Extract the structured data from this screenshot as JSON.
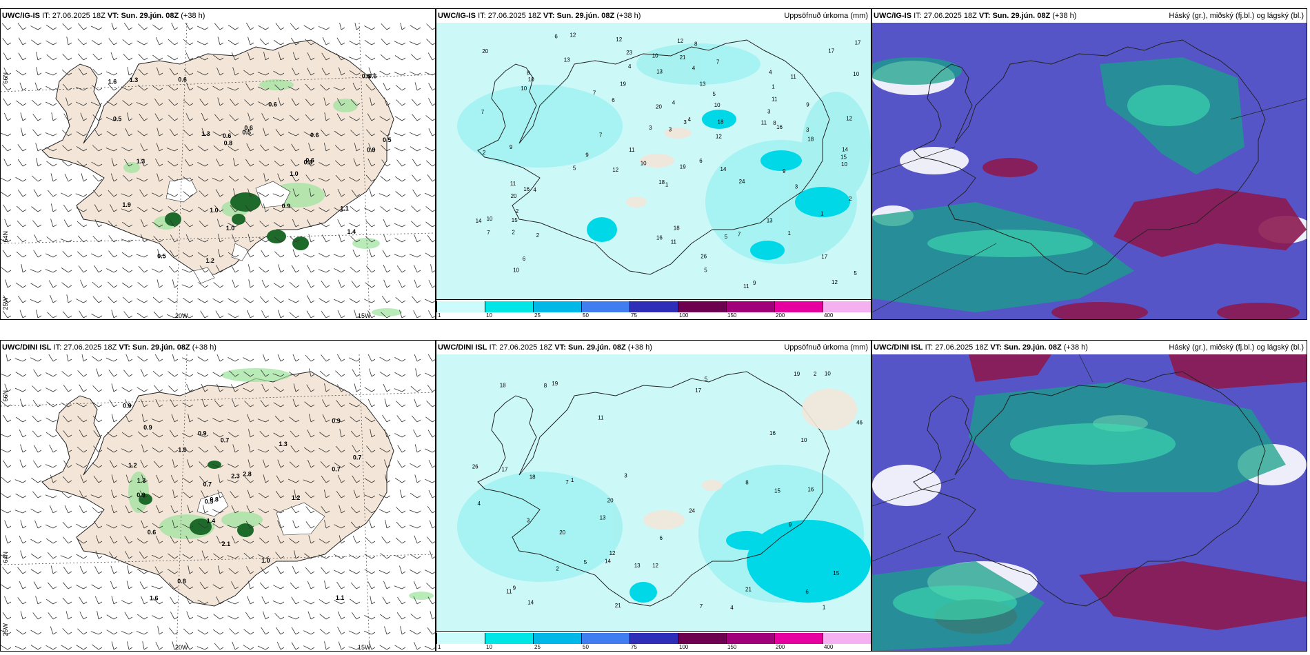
{
  "panels": [
    {
      "model": "UWC/IG-IS",
      "it_label": "IT:",
      "it": "27.06.2025 18Z",
      "vt_label": "VT:",
      "vt": "Sun. 29.jún. 08Z",
      "lead": "(+38 h)",
      "right_title": ""
    },
    {
      "model": "UWC/IG-IS",
      "it_label": "IT:",
      "it": "27.06.2025 18Z",
      "vt_label": "VT:",
      "vt": "Sun. 29.jún. 08Z",
      "lead": "(+38 h)",
      "right_title": "Uppsöfnuð úrkoma (mm)"
    },
    {
      "model": "UWC/IG-IS",
      "it_label": "IT:",
      "it": "27.06.2025 18Z",
      "vt_label": "VT:",
      "vt": "Sun. 29.jún. 08Z",
      "lead": "(+38 h)",
      "right_title": "Háský (gr.), miðský (fj.bl.) og lágský (bl.)"
    },
    {
      "model": "UWC/DINI ISL",
      "it_label": "IT:",
      "it": "27.06.2025 18Z",
      "vt_label": "VT:",
      "vt": "Sun. 29.jún. 08Z",
      "lead": "(+38 h)",
      "right_title": ""
    },
    {
      "model": "UWC/DINI ISL",
      "it_label": "IT:",
      "it": "27.06.2025 18Z",
      "vt_label": "VT:",
      "vt": "Sun. 29.jún. 08Z",
      "lead": "(+38 h)",
      "right_title": "Uppsöfnuð úrkoma (mm)"
    },
    {
      "model": "UWC/DINI ISL",
      "it_label": "IT:",
      "it": "27.06.2025 18Z",
      "vt_label": "VT:",
      "vt": "Sun. 29.jún. 08Z",
      "lead": "(+38 h)",
      "right_title": "Háský (gr.), miðský (fj.bl.) og lágský (bl.)"
    }
  ],
  "axes": {
    "lat_66": "66N",
    "lat_64": "64N",
    "lon_25": "25W",
    "lon_20": "20W",
    "lon_15": "15W"
  },
  "colorbar": {
    "labels": [
      "1",
      "10",
      "25",
      "50",
      "75",
      "100",
      "150",
      "200",
      "400"
    ],
    "colors": [
      "#ccfbfb",
      "#00e5e5",
      "#00b8e8",
      "#3f7df0",
      "#2e2eb8",
      "#6e0050",
      "#a0007a",
      "#e600a0",
      "#f4b0f0"
    ]
  },
  "top_wind_values": [
    "0.5",
    "0.5",
    "0.6",
    "0.6",
    "0.5",
    "0.8",
    "0.6",
    "1.3",
    "0.5",
    "1.9",
    "0.6",
    "0.6",
    "1.1",
    "0.9",
    "1.2",
    "1.0",
    "0.8",
    "1.3",
    "1.6",
    "1.0",
    "1.4",
    "1.3",
    "0.5",
    "0.9",
    "0.6",
    "0.6",
    "1.0"
  ],
  "bottom_wind_values": [
    "0.7",
    "0.9",
    "0.8",
    "1.0",
    "0.8",
    "2.1",
    "0.7",
    "0.9",
    "0.9",
    "1.2",
    "1.3",
    "0.9",
    "0.7",
    "2.3",
    "1.1",
    "0.7",
    "1.6",
    "2.8",
    "1.4",
    "1.2",
    "0.6",
    "0.5",
    "1.0",
    "0.9",
    "1.3"
  ],
  "top_precip_values": [
    "1",
    "1",
    "2",
    "3",
    "4",
    "5",
    "4",
    "6",
    "7",
    "4",
    "5",
    "1",
    "3",
    "6",
    "9",
    "3",
    "4",
    "20",
    "6",
    "11",
    "14",
    "10",
    "7",
    "9",
    "12",
    "13",
    "21",
    "18",
    "8",
    "7",
    "10",
    "11",
    "12",
    "16",
    "8",
    "11",
    "10",
    "20",
    "5",
    "4",
    "7",
    "2",
    "3",
    "16",
    "11",
    "12",
    "17",
    "9",
    "10",
    "13",
    "10",
    "10",
    "9",
    "6",
    "5",
    "8",
    "17",
    "14",
    "13",
    "7",
    "12",
    "20",
    "15",
    "16",
    "18",
    "10",
    "11",
    "12",
    "19",
    "23",
    "24",
    "26",
    "18",
    "15",
    "17",
    "19",
    "18",
    "14",
    "13",
    "12",
    "10",
    "3",
    "5",
    "4",
    "2",
    "2",
    "1",
    "7",
    "11",
    "12",
    "11",
    "2",
    "3",
    "9",
    "10"
  ],
  "bottom_precip_values": [
    "1",
    "2",
    "3",
    "4",
    "5",
    "6",
    "7",
    "8",
    "9",
    "10",
    "11",
    "12",
    "13",
    "14",
    "15",
    "16",
    "17",
    "18",
    "19",
    "20",
    "21",
    "24",
    "26",
    "46",
    "3",
    "2",
    "1",
    "4",
    "5",
    "6",
    "8",
    "7",
    "9",
    "10",
    "11",
    "12",
    "13",
    "14",
    "15",
    "16",
    "17",
    "18",
    "19",
    "20",
    "21"
  ]
}
